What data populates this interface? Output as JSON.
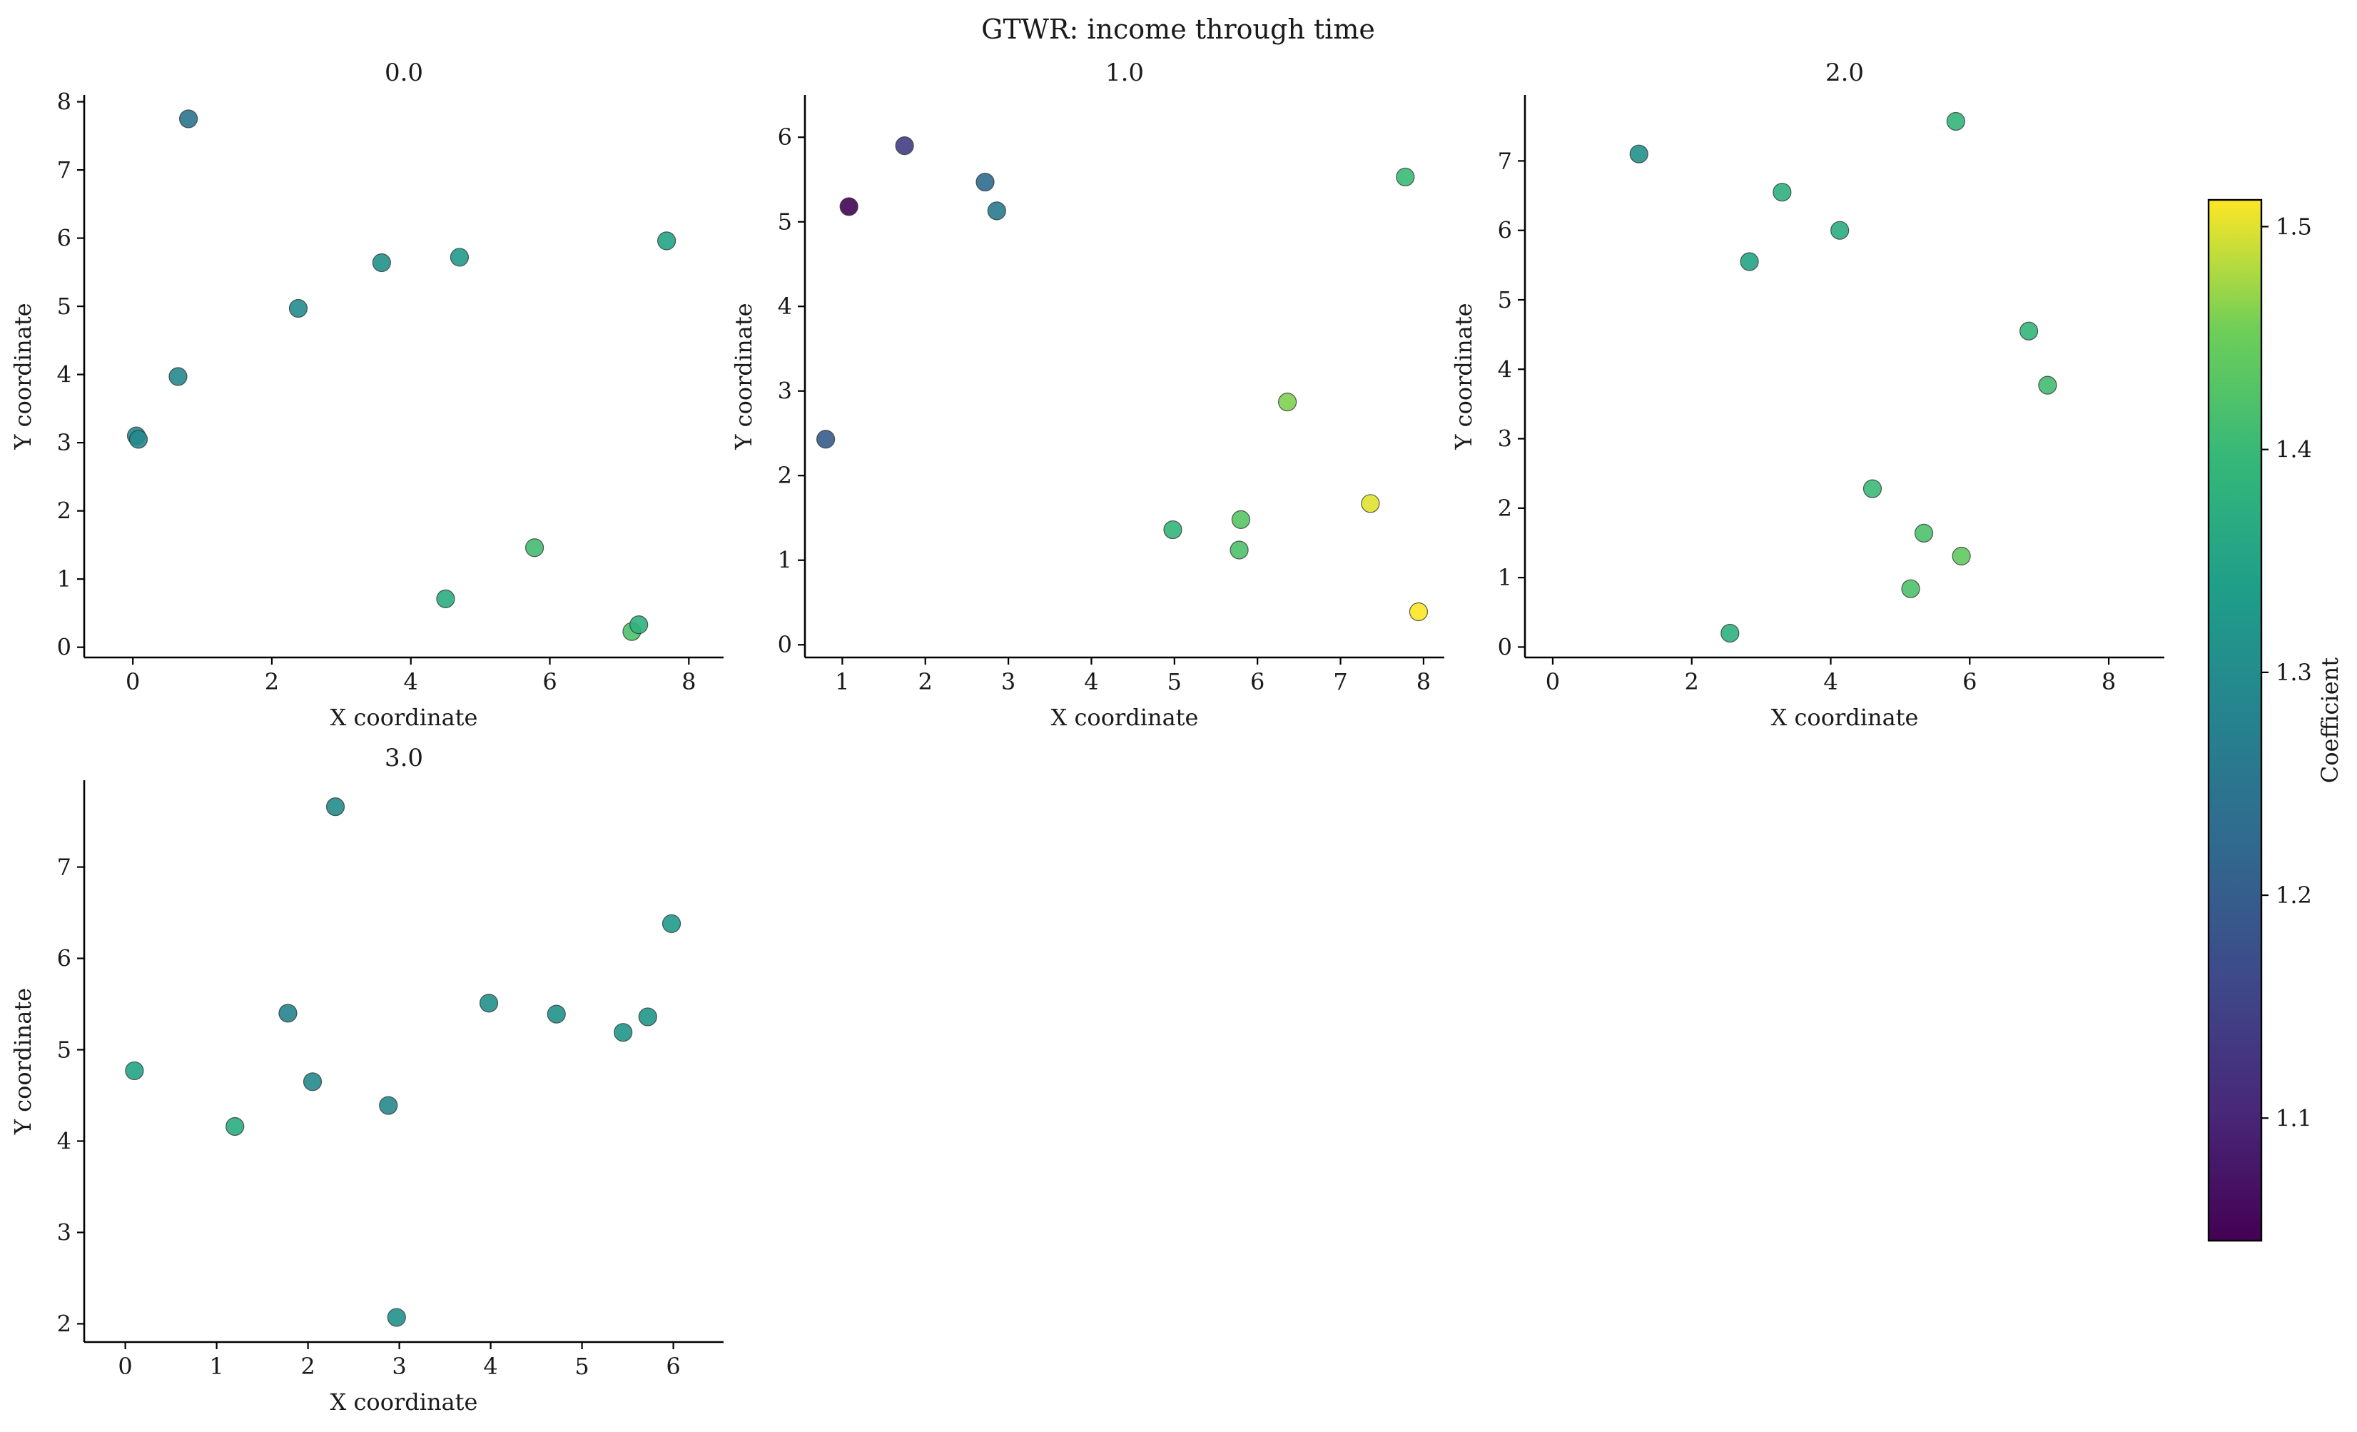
{
  "chart_data": {
    "type": "scatter",
    "title": "GTWR: income through time",
    "xlabel": "X coordinate",
    "ylabel": "Y coordinate",
    "colorbar": {
      "label": "Coefficient",
      "colormap": "viridis",
      "range": [
        1.045,
        1.512
      ],
      "ticks": [
        1.1,
        1.2,
        1.3,
        1.4,
        1.5
      ]
    },
    "panels": [
      {
        "title": "0.0",
        "xlim": [
          -0.7,
          8.5
        ],
        "ylim": [
          -0.15,
          8.1
        ],
        "xticks": [
          0,
          2,
          4,
          6,
          8
        ],
        "yticks": [
          0,
          1,
          2,
          3,
          4,
          5,
          6,
          7,
          8
        ],
        "points": [
          {
            "x": 0.8,
            "y": 7.75,
            "c": 1.25
          },
          {
            "x": 0.05,
            "y": 3.1,
            "c": 1.3
          },
          {
            "x": 0.08,
            "y": 3.05,
            "c": 1.29
          },
          {
            "x": 0.65,
            "y": 3.97,
            "c": 1.29
          },
          {
            "x": 2.38,
            "y": 4.97,
            "c": 1.3
          },
          {
            "x": 3.58,
            "y": 5.64,
            "c": 1.31
          },
          {
            "x": 4.7,
            "y": 5.72,
            "c": 1.33
          },
          {
            "x": 7.68,
            "y": 5.96,
            "c": 1.35
          },
          {
            "x": 5.78,
            "y": 1.46,
            "c": 1.41
          },
          {
            "x": 4.5,
            "y": 0.71,
            "c": 1.37
          },
          {
            "x": 7.18,
            "y": 0.23,
            "c": 1.42
          },
          {
            "x": 7.28,
            "y": 0.33,
            "c": 1.38
          }
        ]
      },
      {
        "title": "1.0",
        "xlim": [
          0.55,
          8.25
        ],
        "ylim": [
          -0.15,
          6.5
        ],
        "xticks": [
          1,
          2,
          3,
          4,
          5,
          6,
          7,
          8
        ],
        "yticks": [
          0,
          1,
          2,
          3,
          4,
          5,
          6
        ],
        "points": [
          {
            "x": 1.08,
            "y": 5.18,
            "c": 1.05
          },
          {
            "x": 1.75,
            "y": 5.9,
            "c": 1.14
          },
          {
            "x": 2.72,
            "y": 5.47,
            "c": 1.23
          },
          {
            "x": 2.86,
            "y": 5.13,
            "c": 1.26
          },
          {
            "x": 0.8,
            "y": 2.43,
            "c": 1.2
          },
          {
            "x": 7.78,
            "y": 5.53,
            "c": 1.4
          },
          {
            "x": 6.36,
            "y": 2.87,
            "c": 1.46
          },
          {
            "x": 7.36,
            "y": 1.67,
            "c": 1.5
          },
          {
            "x": 7.94,
            "y": 0.39,
            "c": 1.52
          },
          {
            "x": 4.98,
            "y": 1.36,
            "c": 1.39
          },
          {
            "x": 5.8,
            "y": 1.48,
            "c": 1.43
          },
          {
            "x": 5.78,
            "y": 1.12,
            "c": 1.42
          }
        ]
      },
      {
        "title": "2.0",
        "xlim": [
          -0.4,
          8.8
        ],
        "ylim": [
          -0.15,
          7.95
        ],
        "xticks": [
          0,
          2,
          4,
          6,
          8
        ],
        "yticks": [
          0,
          1,
          2,
          3,
          4,
          5,
          6,
          7
        ],
        "points": [
          {
            "x": 1.24,
            "y": 7.1,
            "c": 1.31
          },
          {
            "x": 5.8,
            "y": 7.57,
            "c": 1.39
          },
          {
            "x": 3.3,
            "y": 6.55,
            "c": 1.38
          },
          {
            "x": 4.13,
            "y": 6.0,
            "c": 1.37
          },
          {
            "x": 2.83,
            "y": 5.55,
            "c": 1.35
          },
          {
            "x": 6.85,
            "y": 4.55,
            "c": 1.39
          },
          {
            "x": 7.12,
            "y": 3.77,
            "c": 1.41
          },
          {
            "x": 4.6,
            "y": 2.28,
            "c": 1.4
          },
          {
            "x": 5.34,
            "y": 1.64,
            "c": 1.42
          },
          {
            "x": 5.88,
            "y": 1.31,
            "c": 1.44
          },
          {
            "x": 5.15,
            "y": 0.84,
            "c": 1.42
          },
          {
            "x": 2.55,
            "y": 0.2,
            "c": 1.38
          }
        ]
      },
      {
        "title": "3.0",
        "xlim": [
          -0.45,
          6.55
        ],
        "ylim": [
          1.8,
          7.95
        ],
        "xticks": [
          0,
          1,
          2,
          3,
          4,
          5,
          6
        ],
        "yticks": [
          2,
          3,
          4,
          5,
          6,
          7
        ],
        "points": [
          {
            "x": 2.3,
            "y": 7.66,
            "c": 1.3
          },
          {
            "x": 0.1,
            "y": 4.77,
            "c": 1.35
          },
          {
            "x": 1.2,
            "y": 4.16,
            "c": 1.37
          },
          {
            "x": 1.78,
            "y": 5.4,
            "c": 1.28
          },
          {
            "x": 2.05,
            "y": 4.65,
            "c": 1.29
          },
          {
            "x": 2.88,
            "y": 4.39,
            "c": 1.29
          },
          {
            "x": 2.97,
            "y": 2.07,
            "c": 1.31
          },
          {
            "x": 3.98,
            "y": 5.51,
            "c": 1.31
          },
          {
            "x": 4.72,
            "y": 5.39,
            "c": 1.31
          },
          {
            "x": 5.45,
            "y": 5.19,
            "c": 1.32
          },
          {
            "x": 5.72,
            "y": 5.36,
            "c": 1.32
          },
          {
            "x": 5.98,
            "y": 6.38,
            "c": 1.33
          }
        ]
      }
    ]
  }
}
